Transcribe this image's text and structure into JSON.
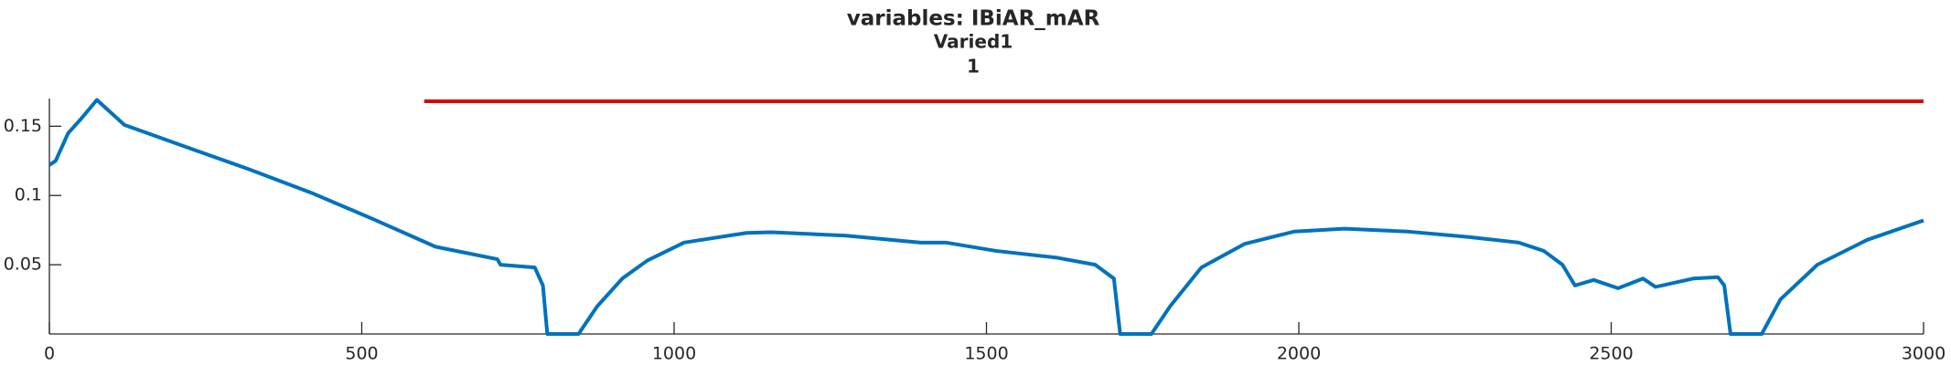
{
  "chart_data": {
    "type": "line",
    "title": "variables: IBiAR_mAR",
    "subtitle": "Varied1",
    "annotation": "1",
    "xlim": [
      0,
      3000
    ],
    "xticks": [
      0,
      500,
      1000,
      1500,
      2000,
      2500,
      3000
    ],
    "ylim": [
      0,
      0.17
    ],
    "yticks": [
      0.05,
      0.1,
      0.15
    ],
    "series": [
      {
        "color": "#0072bd",
        "x": [
          0,
          10,
          30,
          50,
          76,
          120,
          219,
          319,
          419,
          518,
          618,
          717,
          722,
          777,
          790,
          797,
          847,
          877,
          917,
          957,
          1016,
          1116,
          1156,
          1275,
          1395,
          1435,
          1515,
          1614,
          1674,
          1704,
          1714,
          1764,
          1794,
          1844,
          1913,
          1993,
          2073,
          2173,
          2272,
          2352,
          2392,
          2422,
          2442,
          2472,
          2511,
          2551,
          2571,
          2631,
          2671,
          2681,
          2691,
          2741,
          2771,
          2830,
          2910,
          3000
        ],
        "values": [
          0.122,
          0.125,
          0.145,
          0.155,
          0.169,
          0.151,
          0.135,
          0.119,
          0.102,
          0.083,
          0.063,
          0.054,
          0.05,
          0.048,
          0.035,
          0,
          0,
          0.02,
          0.04,
          0.053,
          0.066,
          0.073,
          0.0735,
          0.071,
          0.066,
          0.066,
          0.06,
          0.055,
          0.05,
          0.04,
          0,
          0,
          0.02,
          0.048,
          0.065,
          0.074,
          0.076,
          0.074,
          0.07,
          0.066,
          0.06,
          0.05,
          0.035,
          0.039,
          0.033,
          0.04,
          0.034,
          0.04,
          0.041,
          0.035,
          0,
          0,
          0.025,
          0.05,
          0.068,
          0.082
        ]
      },
      {
        "color": "#d9000a",
        "x": [
          600,
          3000
        ],
        "values": [
          0.168,
          0.168
        ]
      }
    ]
  }
}
